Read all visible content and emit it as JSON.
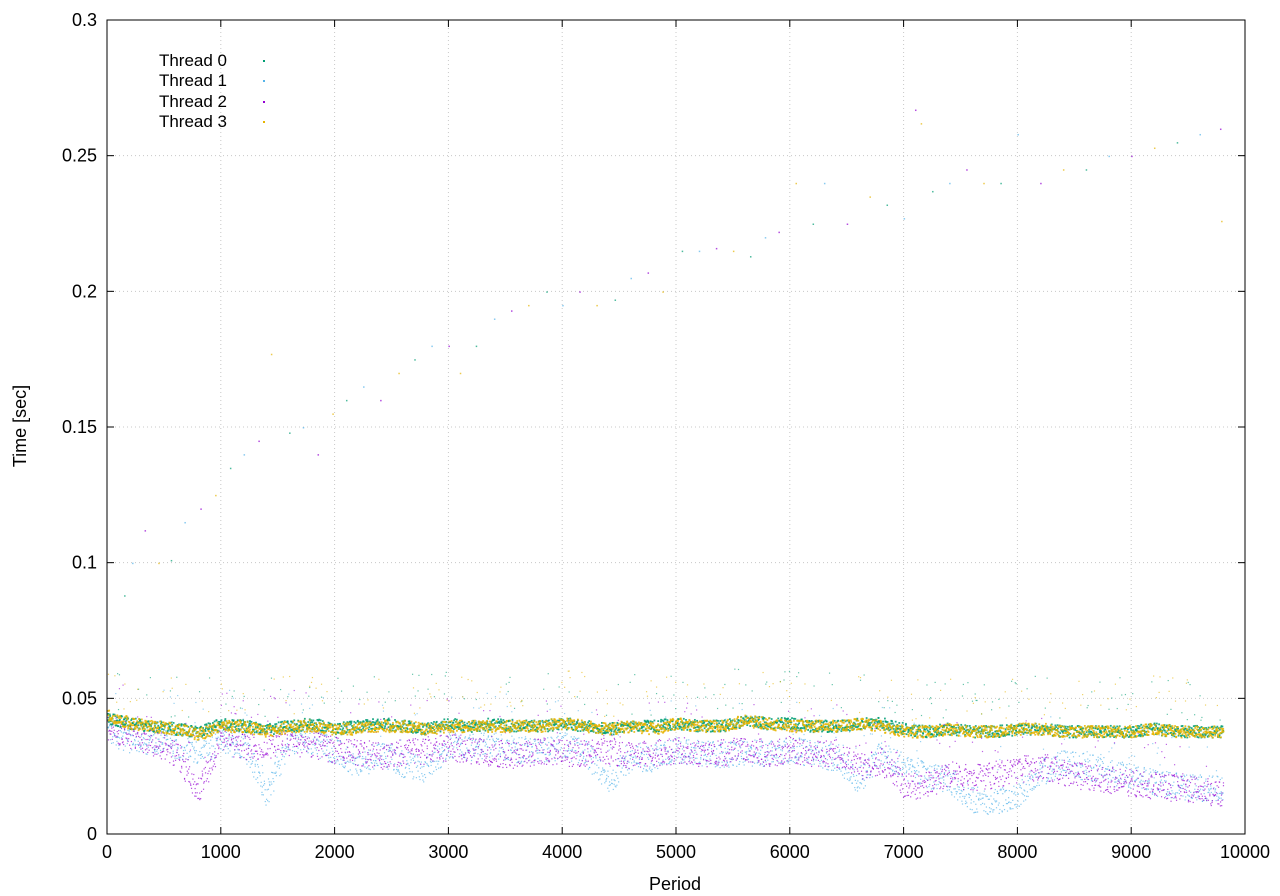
{
  "chart_data": {
    "type": "scatter",
    "xlabel": "Period",
    "ylabel": "Time [sec]",
    "xlim": [
      0,
      10000
    ],
    "ylim": [
      0,
      0.3
    ],
    "x_ticks": [
      0,
      1000,
      2000,
      3000,
      4000,
      5000,
      6000,
      7000,
      8000,
      9000,
      10000
    ],
    "x_tick_labels": [
      "0",
      "1000",
      "2000",
      "3000",
      "4000",
      "5000",
      "6000",
      "7000",
      "8000",
      "9000",
      "10000"
    ],
    "y_ticks": [
      0,
      0.05,
      0.1,
      0.15,
      0.2,
      0.25,
      0.3
    ],
    "y_tick_labels": [
      "0",
      "0.05",
      "0.1",
      "0.15",
      "0.2",
      "0.25",
      "0.3"
    ],
    "grid": true,
    "legend_position": "top-left",
    "series": [
      {
        "name": "Thread 0",
        "color": "#009e73",
        "x_range": [
          0,
          9800
        ],
        "typical_y": 0.04,
        "points": [
          [
            0,
            0.043
          ],
          [
            200,
            0.041
          ],
          [
            400,
            0.04
          ],
          [
            600,
            0.039
          ],
          [
            800,
            0.038
          ],
          [
            1000,
            0.041
          ],
          [
            1200,
            0.04
          ],
          [
            1400,
            0.039
          ],
          [
            1600,
            0.04
          ],
          [
            1800,
            0.041
          ],
          [
            2000,
            0.039
          ],
          [
            2200,
            0.04
          ],
          [
            2400,
            0.041
          ],
          [
            2600,
            0.04
          ],
          [
            2800,
            0.039
          ],
          [
            3000,
            0.041
          ],
          [
            3200,
            0.04
          ],
          [
            3400,
            0.041
          ],
          [
            3600,
            0.04
          ],
          [
            3800,
            0.04
          ],
          [
            4000,
            0.041
          ],
          [
            4200,
            0.04
          ],
          [
            4400,
            0.039
          ],
          [
            4600,
            0.04
          ],
          [
            4800,
            0.04
          ],
          [
            5000,
            0.041
          ],
          [
            5200,
            0.04
          ],
          [
            5400,
            0.04
          ],
          [
            5600,
            0.042
          ],
          [
            5800,
            0.041
          ],
          [
            6000,
            0.041
          ],
          [
            6200,
            0.04
          ],
          [
            6400,
            0.04
          ],
          [
            6600,
            0.041
          ],
          [
            6800,
            0.041
          ],
          [
            7000,
            0.039
          ],
          [
            7200,
            0.038
          ],
          [
            7400,
            0.039
          ],
          [
            7600,
            0.038
          ],
          [
            7800,
            0.038
          ],
          [
            8000,
            0.039
          ],
          [
            8200,
            0.039
          ],
          [
            8400,
            0.038
          ],
          [
            8600,
            0.038
          ],
          [
            8800,
            0.038
          ],
          [
            9000,
            0.038
          ],
          [
            9200,
            0.039
          ],
          [
            9400,
            0.038
          ],
          [
            9600,
            0.038
          ],
          [
            9800,
            0.038
          ]
        ]
      },
      {
        "name": "Thread 1",
        "color": "#56b4e9",
        "x_range": [
          0,
          9800
        ],
        "typical_y": 0.03,
        "points": [
          [
            0,
            0.038
          ],
          [
            200,
            0.035
          ],
          [
            400,
            0.034
          ],
          [
            600,
            0.033
          ],
          [
            800,
            0.031
          ],
          [
            1000,
            0.034
          ],
          [
            1200,
            0.033
          ],
          [
            1400,
            0.015
          ],
          [
            1600,
            0.035
          ],
          [
            1800,
            0.034
          ],
          [
            2000,
            0.031
          ],
          [
            2200,
            0.025
          ],
          [
            2400,
            0.03
          ],
          [
            2600,
            0.026
          ],
          [
            2800,
            0.024
          ],
          [
            3000,
            0.033
          ],
          [
            3200,
            0.032
          ],
          [
            3400,
            0.033
          ],
          [
            3600,
            0.031
          ],
          [
            3800,
            0.03
          ],
          [
            4000,
            0.033
          ],
          [
            4200,
            0.03
          ],
          [
            4400,
            0.02
          ],
          [
            4600,
            0.028
          ],
          [
            4800,
            0.028
          ],
          [
            5000,
            0.031
          ],
          [
            5200,
            0.03
          ],
          [
            5400,
            0.029
          ],
          [
            5600,
            0.03
          ],
          [
            5800,
            0.03
          ],
          [
            6000,
            0.031
          ],
          [
            6200,
            0.03
          ],
          [
            6400,
            0.028
          ],
          [
            6600,
            0.02
          ],
          [
            6800,
            0.03
          ],
          [
            7000,
            0.025
          ],
          [
            7200,
            0.022
          ],
          [
            7400,
            0.02
          ],
          [
            7600,
            0.013
          ],
          [
            7800,
            0.012
          ],
          [
            8000,
            0.015
          ],
          [
            8200,
            0.023
          ],
          [
            8400,
            0.026
          ],
          [
            8600,
            0.025
          ],
          [
            8800,
            0.023
          ],
          [
            9000,
            0.021
          ],
          [
            9200,
            0.019
          ],
          [
            9400,
            0.018
          ],
          [
            9600,
            0.017
          ],
          [
            9800,
            0.017
          ]
        ]
      },
      {
        "name": "Thread 2",
        "color": "#9400d3",
        "x_range": [
          0,
          9800
        ],
        "typical_y": 0.03,
        "points": [
          [
            0,
            0.04
          ],
          [
            200,
            0.036
          ],
          [
            400,
            0.034
          ],
          [
            600,
            0.03
          ],
          [
            800,
            0.016
          ],
          [
            1000,
            0.035
          ],
          [
            1200,
            0.032
          ],
          [
            1400,
            0.033
          ],
          [
            1600,
            0.034
          ],
          [
            1800,
            0.033
          ],
          [
            2000,
            0.031
          ],
          [
            2200,
            0.03
          ],
          [
            2400,
            0.029
          ],
          [
            2600,
            0.03
          ],
          [
            2800,
            0.031
          ],
          [
            3000,
            0.032
          ],
          [
            3200,
            0.031
          ],
          [
            3400,
            0.03
          ],
          [
            3600,
            0.029
          ],
          [
            3800,
            0.031
          ],
          [
            4000,
            0.03
          ],
          [
            4200,
            0.03
          ],
          [
            4400,
            0.031
          ],
          [
            4600,
            0.029
          ],
          [
            4800,
            0.03
          ],
          [
            5000,
            0.031
          ],
          [
            5200,
            0.03
          ],
          [
            5400,
            0.03
          ],
          [
            5600,
            0.031
          ],
          [
            5800,
            0.03
          ],
          [
            6000,
            0.031
          ],
          [
            6200,
            0.03
          ],
          [
            6400,
            0.03
          ],
          [
            6600,
            0.025
          ],
          [
            6800,
            0.027
          ],
          [
            7000,
            0.018
          ],
          [
            7200,
            0.018
          ],
          [
            7400,
            0.022
          ],
          [
            7600,
            0.021
          ],
          [
            7800,
            0.022
          ],
          [
            8000,
            0.024
          ],
          [
            8200,
            0.025
          ],
          [
            8400,
            0.023
          ],
          [
            8600,
            0.021
          ],
          [
            8800,
            0.02
          ],
          [
            9000,
            0.019
          ],
          [
            9200,
            0.018
          ],
          [
            9400,
            0.017
          ],
          [
            9600,
            0.016
          ],
          [
            9800,
            0.015
          ]
        ]
      },
      {
        "name": "Thread 3",
        "color": "#e6b400",
        "x_range": [
          0,
          9800
        ],
        "typical_y": 0.04,
        "points": [
          [
            0,
            0.044
          ],
          [
            200,
            0.041
          ],
          [
            400,
            0.04
          ],
          [
            600,
            0.039
          ],
          [
            800,
            0.037
          ],
          [
            1000,
            0.04
          ],
          [
            1200,
            0.04
          ],
          [
            1400,
            0.038
          ],
          [
            1600,
            0.04
          ],
          [
            1800,
            0.04
          ],
          [
            2000,
            0.039
          ],
          [
            2200,
            0.039
          ],
          [
            2400,
            0.04
          ],
          [
            2600,
            0.04
          ],
          [
            2800,
            0.039
          ],
          [
            3000,
            0.04
          ],
          [
            3200,
            0.04
          ],
          [
            3400,
            0.04
          ],
          [
            3600,
            0.04
          ],
          [
            3800,
            0.04
          ],
          [
            4000,
            0.041
          ],
          [
            4200,
            0.04
          ],
          [
            4400,
            0.039
          ],
          [
            4600,
            0.04
          ],
          [
            4800,
            0.039
          ],
          [
            5000,
            0.041
          ],
          [
            5200,
            0.04
          ],
          [
            5400,
            0.04
          ],
          [
            5600,
            0.042
          ],
          [
            5800,
            0.041
          ],
          [
            6000,
            0.04
          ],
          [
            6200,
            0.04
          ],
          [
            6400,
            0.04
          ],
          [
            6600,
            0.041
          ],
          [
            6800,
            0.04
          ],
          [
            7000,
            0.038
          ],
          [
            7200,
            0.038
          ],
          [
            7400,
            0.039
          ],
          [
            7600,
            0.038
          ],
          [
            7800,
            0.038
          ],
          [
            8000,
            0.039
          ],
          [
            8200,
            0.039
          ],
          [
            8400,
            0.038
          ],
          [
            8600,
            0.038
          ],
          [
            8800,
            0.038
          ],
          [
            9000,
            0.038
          ],
          [
            9200,
            0.039
          ],
          [
            9400,
            0.038
          ],
          [
            9600,
            0.038
          ],
          [
            9800,
            0.038
          ]
        ]
      }
    ],
    "outliers": [
      [
        150,
        0.088
      ],
      [
        220,
        0.1
      ],
      [
        330,
        0.112
      ],
      [
        450,
        0.1
      ],
      [
        560,
        0.101
      ],
      [
        680,
        0.115
      ],
      [
        820,
        0.12
      ],
      [
        950,
        0.125
      ],
      [
        1080,
        0.135
      ],
      [
        1200,
        0.14
      ],
      [
        1330,
        0.145
      ],
      [
        1440,
        0.177
      ],
      [
        1600,
        0.148
      ],
      [
        1720,
        0.15
      ],
      [
        1850,
        0.14
      ],
      [
        1980,
        0.155
      ],
      [
        2100,
        0.16
      ],
      [
        2250,
        0.165
      ],
      [
        2400,
        0.16
      ],
      [
        2560,
        0.17
      ],
      [
        2700,
        0.175
      ],
      [
        2850,
        0.18
      ],
      [
        3000,
        0.18
      ],
      [
        3100,
        0.17
      ],
      [
        3240,
        0.18
      ],
      [
        3400,
        0.19
      ],
      [
        3550,
        0.193
      ],
      [
        3700,
        0.195
      ],
      [
        3860,
        0.2
      ],
      [
        4000,
        0.195
      ],
      [
        4150,
        0.2
      ],
      [
        4300,
        0.195
      ],
      [
        4460,
        0.197
      ],
      [
        4600,
        0.205
      ],
      [
        4750,
        0.207
      ],
      [
        4880,
        0.2
      ],
      [
        5050,
        0.215
      ],
      [
        5200,
        0.215
      ],
      [
        5350,
        0.216
      ],
      [
        5500,
        0.215
      ],
      [
        5650,
        0.213
      ],
      [
        5780,
        0.22
      ],
      [
        5900,
        0.222
      ],
      [
        6050,
        0.24
      ],
      [
        6200,
        0.225
      ],
      [
        6300,
        0.24
      ],
      [
        6500,
        0.225
      ],
      [
        6700,
        0.235
      ],
      [
        6850,
        0.232
      ],
      [
        7000,
        0.227
      ],
      [
        7100,
        0.267
      ],
      [
        7150,
        0.262
      ],
      [
        7250,
        0.237
      ],
      [
        7400,
        0.24
      ],
      [
        7550,
        0.245
      ],
      [
        7700,
        0.24
      ],
      [
        7850,
        0.24
      ],
      [
        8000,
        0.258
      ],
      [
        8200,
        0.24
      ],
      [
        8400,
        0.245
      ],
      [
        8600,
        0.245
      ],
      [
        8800,
        0.25
      ],
      [
        9000,
        0.25
      ],
      [
        9200,
        0.253
      ],
      [
        9400,
        0.255
      ],
      [
        9600,
        0.258
      ],
      [
        9780,
        0.26
      ],
      [
        9790,
        0.226
      ]
    ]
  }
}
